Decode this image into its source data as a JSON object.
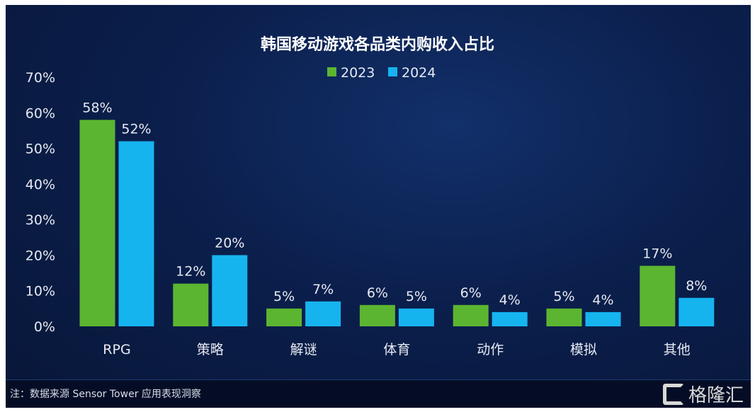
{
  "chart_data": {
    "type": "bar",
    "title": "韩国移动游戏各品类内购收入占比",
    "categories": [
      "RPG",
      "策略",
      "解谜",
      "体育",
      "动作",
      "模拟",
      "其他"
    ],
    "series": [
      {
        "name": "2023",
        "color": "#5cb531",
        "values": [
          58,
          12,
          5,
          6,
          6,
          5,
          17
        ]
      },
      {
        "name": "2024",
        "color": "#16b4ef",
        "values": [
          52,
          20,
          7,
          5,
          4,
          4,
          8
        ]
      }
    ],
    "ylim": [
      0,
      70
    ],
    "yticks": [
      "0%",
      "10%",
      "20%",
      "30%",
      "40%",
      "50%",
      "60%",
      "70%"
    ],
    "value_suffix": "%",
    "grid": false,
    "legend": "top-center"
  },
  "footer": {
    "note": "注：数据来源 Sensor Tower 应用表现洞察",
    "logo": "格隆汇"
  }
}
